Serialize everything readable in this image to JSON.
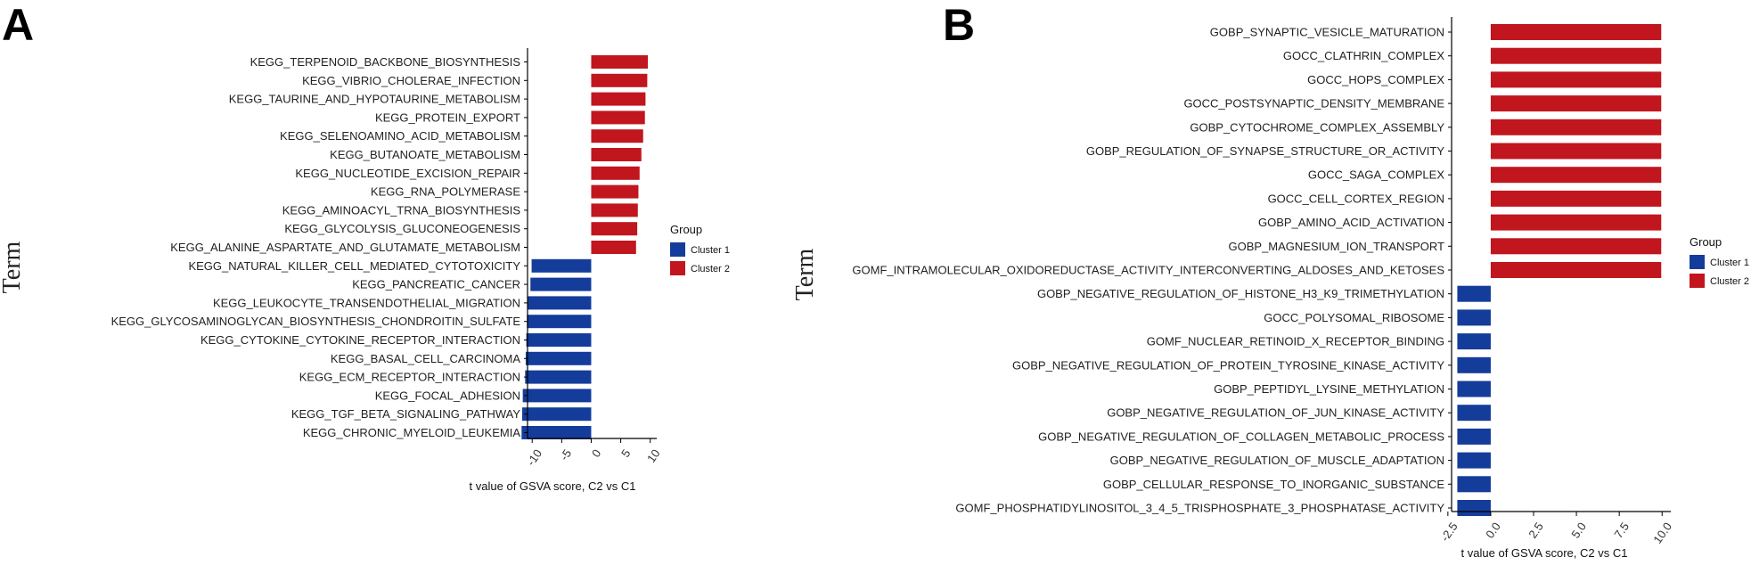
{
  "colors": {
    "Cluster 1": "#143c9a",
    "Cluster 2": "#c1161e"
  },
  "chart_data": [
    {
      "panel": "A",
      "type": "bar",
      "orientation": "horizontal",
      "ylabel": "Term",
      "xlabel": "t value of GSVA score, C2 vs C1",
      "xlim": [
        -12,
        10.5
      ],
      "xticks": [
        -10,
        -5,
        0,
        5,
        10
      ],
      "xtick_labels": [
        "-10",
        "-5",
        "0",
        "5",
        "10"
      ],
      "legend": {
        "title": "Group",
        "position": "right",
        "entries": [
          "Cluster 1",
          "Cluster 2"
        ]
      },
      "bars": [
        {
          "term": "KEGG_TERPENOID_BACKBONE_BIOSYNTHESIS",
          "value": 9.6,
          "group": "Cluster 2"
        },
        {
          "term": "KEGG_VIBRIO_CHOLERAE_INFECTION",
          "value": 9.5,
          "group": "Cluster 2"
        },
        {
          "term": "KEGG_TAURINE_AND_HYPOTAURINE_METABOLISM",
          "value": 9.2,
          "group": "Cluster 2"
        },
        {
          "term": "KEGG_PROTEIN_EXPORT",
          "value": 9.1,
          "group": "Cluster 2"
        },
        {
          "term": "KEGG_SELENOAMINO_ACID_METABOLISM",
          "value": 8.8,
          "group": "Cluster 2"
        },
        {
          "term": "KEGG_BUTANOATE_METABOLISM",
          "value": 8.5,
          "group": "Cluster 2"
        },
        {
          "term": "KEGG_NUCLEOTIDE_EXCISION_REPAIR",
          "value": 8.2,
          "group": "Cluster 2"
        },
        {
          "term": "KEGG_RNA_POLYMERASE",
          "value": 8.0,
          "group": "Cluster 2"
        },
        {
          "term": "KEGG_AMINOACYL_TRNA_BIOSYNTHESIS",
          "value": 7.9,
          "group": "Cluster 2"
        },
        {
          "term": "KEGG_GLYCOLYSIS_GLUCONEOGENESIS",
          "value": 7.8,
          "group": "Cluster 2"
        },
        {
          "term": "KEGG_ALANINE_ASPARTATE_AND_GLUTAMATE_METABOLISM",
          "value": 7.6,
          "group": "Cluster 2"
        },
        {
          "term": "KEGG_NATURAL_KILLER_CELL_MEDIATED_CYTOTOXICITY",
          "value": -10.1,
          "group": "Cluster 1"
        },
        {
          "term": "KEGG_PANCREATIC_CANCER",
          "value": -10.3,
          "group": "Cluster 1"
        },
        {
          "term": "KEGG_LEUKOCYTE_TRANSENDOTHELIAL_MIGRATION",
          "value": -10.8,
          "group": "Cluster 1"
        },
        {
          "term": "KEGG_GLYCOSAMINOGLYCAN_BIOSYNTHESIS_CHONDROITIN_SULFATE",
          "value": -10.9,
          "group": "Cluster 1"
        },
        {
          "term": "KEGG_CYTOKINE_CYTOKINE_RECEPTOR_INTERACTION",
          "value": -11.0,
          "group": "Cluster 1"
        },
        {
          "term": "KEGG_BASAL_CELL_CARCINOMA",
          "value": -11.1,
          "group": "Cluster 1"
        },
        {
          "term": "KEGG_ECM_RECEPTOR_INTERACTION",
          "value": -11.2,
          "group": "Cluster 1"
        },
        {
          "term": "KEGG_FOCAL_ADHESION",
          "value": -11.6,
          "group": "Cluster 1"
        },
        {
          "term": "KEGG_TGF_BETA_SIGNALING_PATHWAY",
          "value": -11.7,
          "group": "Cluster 1"
        },
        {
          "term": "KEGG_CHRONIC_MYELOID_LEUKEMIA",
          "value": -11.8,
          "group": "Cluster 1"
        }
      ]
    },
    {
      "panel": "B",
      "type": "bar",
      "orientation": "horizontal",
      "ylabel": "Term",
      "xlabel": "t value of GSVA score, C2 vs C1",
      "xlim": [
        -2.7,
        10.3
      ],
      "xticks": [
        -2.5,
        0,
        2.5,
        5,
        7.5,
        10
      ],
      "xtick_labels": [
        "-2.5",
        "0.0",
        "2.5",
        "5.0",
        "7.5",
        "10.0"
      ],
      "legend": {
        "title": "Group",
        "position": "right",
        "entries": [
          "Cluster 1",
          "Cluster 2"
        ]
      },
      "bars": [
        {
          "term": "GOBP_SYNAPTIC_VESICLE_MATURATION",
          "value": 9.95,
          "group": "Cluster 2"
        },
        {
          "term": "GOCC_CLATHRIN_COMPLEX",
          "value": 9.95,
          "group": "Cluster 2"
        },
        {
          "term": "GOCC_HOPS_COMPLEX",
          "value": 9.95,
          "group": "Cluster 2"
        },
        {
          "term": "GOCC_POSTSYNAPTIC_DENSITY_MEMBRANE",
          "value": 9.95,
          "group": "Cluster 2"
        },
        {
          "term": "GOBP_CYTOCHROME_COMPLEX_ASSEMBLY",
          "value": 9.95,
          "group": "Cluster 2"
        },
        {
          "term": "GOBP_REGULATION_OF_SYNAPSE_STRUCTURE_OR_ACTIVITY",
          "value": 9.95,
          "group": "Cluster 2"
        },
        {
          "term": "GOCC_SAGA_COMPLEX",
          "value": 9.95,
          "group": "Cluster 2"
        },
        {
          "term": "GOCC_CELL_CORTEX_REGION",
          "value": 9.95,
          "group": "Cluster 2"
        },
        {
          "term": "GOBP_AMINO_ACID_ACTIVATION",
          "value": 9.95,
          "group": "Cluster 2"
        },
        {
          "term": "GOBP_MAGNESIUM_ION_TRANSPORT",
          "value": 9.95,
          "group": "Cluster 2"
        },
        {
          "term": "GOMF_INTRAMOLECULAR_OXIDOREDUCTASE_ACTIVITY_INTERCONVERTING_ALDOSES_AND_KETOSES",
          "value": 9.95,
          "group": "Cluster 2"
        },
        {
          "term": "GOBP_NEGATIVE_REGULATION_OF_HISTONE_H3_K9_TRIMETHYLATION",
          "value": -1.95,
          "group": "Cluster 1"
        },
        {
          "term": "GOCC_POLYSOMAL_RIBOSOME",
          "value": -1.95,
          "group": "Cluster 1"
        },
        {
          "term": "GOMF_NUCLEAR_RETINOID_X_RECEPTOR_BINDING",
          "value": -1.95,
          "group": "Cluster 1"
        },
        {
          "term": "GOBP_NEGATIVE_REGULATION_OF_PROTEIN_TYROSINE_KINASE_ACTIVITY",
          "value": -1.95,
          "group": "Cluster 1"
        },
        {
          "term": "GOBP_PEPTIDYL_LYSINE_METHYLATION",
          "value": -1.95,
          "group": "Cluster 1"
        },
        {
          "term": "GOBP_NEGATIVE_REGULATION_OF_JUN_KINASE_ACTIVITY",
          "value": -1.95,
          "group": "Cluster 1"
        },
        {
          "term": "GOBP_NEGATIVE_REGULATION_OF_COLLAGEN_METABOLIC_PROCESS",
          "value": -1.95,
          "group": "Cluster 1"
        },
        {
          "term": "GOBP_NEGATIVE_REGULATION_OF_MUSCLE_ADAPTATION",
          "value": -1.95,
          "group": "Cluster 1"
        },
        {
          "term": "GOBP_CELLULAR_RESPONSE_TO_INORGANIC_SUBSTANCE",
          "value": -1.95,
          "group": "Cluster 1"
        },
        {
          "term": "GOMF_PHOSPHATIDYLINOSITOL_3_4_5_TRISPHOSPHATE_3_PHOSPHATASE_ACTIVITY",
          "value": -1.95,
          "group": "Cluster 1"
        }
      ]
    }
  ]
}
